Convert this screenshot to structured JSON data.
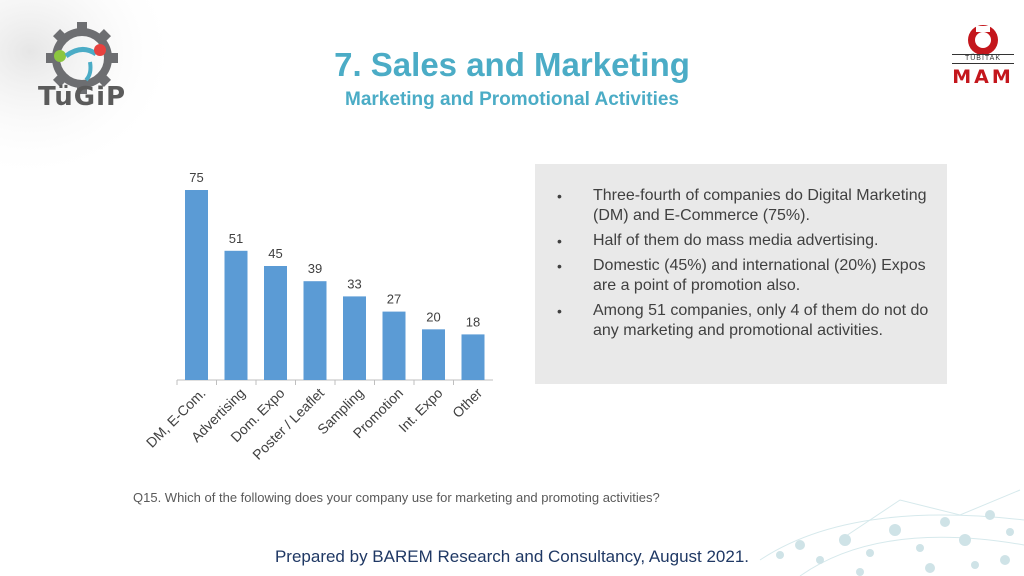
{
  "header": {
    "title": "7. Sales and Marketing",
    "subtitle": "Marketing and Promotional Activities"
  },
  "logos": {
    "left": {
      "text": "TüGiP",
      "icon": "gear-icon"
    },
    "right": {
      "small_text": "TÜBİTAK",
      "main_text": "MAM",
      "icon": "tubitak-emblem-icon"
    }
  },
  "chart_data": {
    "type": "bar",
    "categories": [
      "DM, E-Com.",
      "Advertising",
      "Dom. Expo",
      "Poster / Leaflet",
      "Sampling",
      "Promotion",
      "Int. Expo",
      "Other"
    ],
    "values": [
      75,
      51,
      45,
      39,
      33,
      27,
      20,
      18
    ],
    "title": "",
    "xlabel": "",
    "ylabel": "",
    "ylim": [
      0,
      75
    ],
    "grid": false,
    "color": "#5b9bd5"
  },
  "summary": {
    "items": [
      "Three-fourth of companies do Digital Marketing  (DM) and E-Commerce (75%).",
      "Half of them do mass media advertising.",
      "Domestic (45%) and international (20%) Expos are a point of promotion also.",
      "Among 51 companies, only 4 of them do not do any marketing and promotional activities."
    ]
  },
  "question": "Q15. Which of the following does your company use for marketing and promoting activities?",
  "footer": "Prepared by BAREM Research and Consultancy, August 2021."
}
